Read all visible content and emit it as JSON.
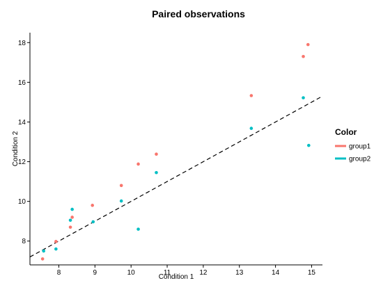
{
  "chart_data": {
    "type": "scatter",
    "title": "Paired observations",
    "xlabel": "Condition 1",
    "ylabel": "Condition 2",
    "xlim": [
      7.2,
      15.3
    ],
    "ylim": [
      6.8,
      18.5
    ],
    "xticks": [
      8,
      9,
      10,
      11,
      12,
      13,
      14,
      15
    ],
    "yticks": [
      8,
      10,
      12,
      14,
      16,
      18
    ],
    "grid": false,
    "legend": {
      "title": "Color",
      "position": "right",
      "entries": [
        {
          "name": "group1",
          "color": "#F8766D"
        },
        {
          "name": "group2",
          "color": "#00BFC4"
        }
      ]
    },
    "series": [
      {
        "name": "group1",
        "color": "#F8766D",
        "points": [
          [
            7.55,
            7.1
          ],
          [
            7.92,
            7.98
          ],
          [
            8.32,
            8.7
          ],
          [
            8.37,
            9.2
          ],
          [
            8.93,
            9.8
          ],
          [
            9.73,
            10.8
          ],
          [
            10.2,
            11.88
          ],
          [
            10.7,
            12.38
          ],
          [
            13.33,
            15.33
          ],
          [
            14.77,
            17.3
          ],
          [
            14.9,
            17.9
          ]
        ]
      },
      {
        "name": "group2",
        "color": "#00BFC4",
        "points": [
          [
            7.58,
            7.5
          ],
          [
            7.92,
            7.6
          ],
          [
            8.32,
            9.05
          ],
          [
            8.37,
            9.6
          ],
          [
            8.95,
            8.97
          ],
          [
            9.73,
            10.02
          ],
          [
            10.2,
            8.6
          ],
          [
            10.7,
            11.45
          ],
          [
            13.33,
            13.68
          ],
          [
            14.77,
            15.22
          ],
          [
            14.92,
            12.82
          ]
        ]
      }
    ],
    "reference_line": {
      "style": "dashed",
      "color": "#000000",
      "from": [
        7.2,
        7.2
      ],
      "to": [
        15.3,
        15.3
      ]
    }
  }
}
